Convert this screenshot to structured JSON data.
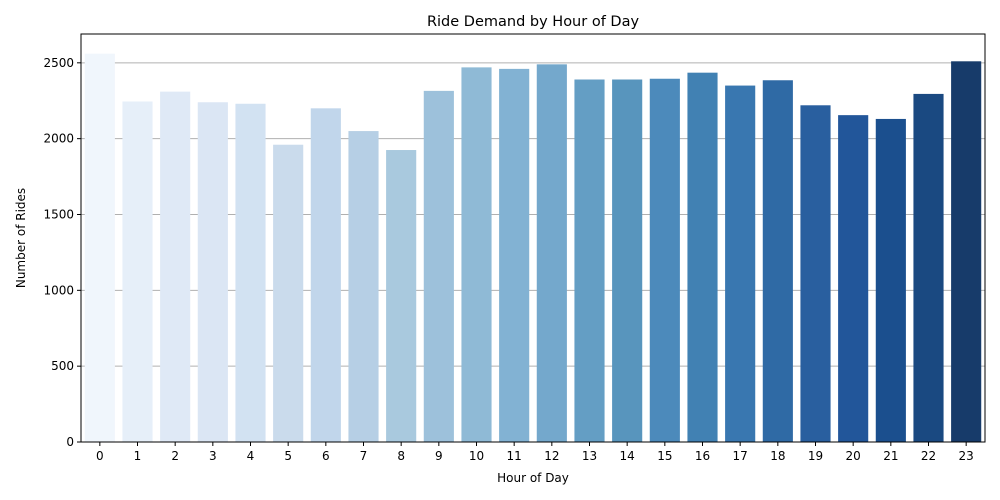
{
  "chart_data": {
    "type": "bar",
    "title": "Ride Demand by Hour of Day",
    "xlabel": "Hour of Day",
    "ylabel": "Number of Rides",
    "categories": [
      "0",
      "1",
      "2",
      "3",
      "4",
      "5",
      "6",
      "7",
      "8",
      "9",
      "10",
      "11",
      "12",
      "13",
      "14",
      "15",
      "16",
      "17",
      "18",
      "19",
      "20",
      "21",
      "22",
      "23"
    ],
    "values": [
      2560,
      2245,
      2310,
      2240,
      2230,
      1960,
      2200,
      2050,
      1925,
      2315,
      2470,
      2460,
      2490,
      2390,
      2390,
      2395,
      2435,
      2350,
      2385,
      2220,
      2155,
      2130,
      2295,
      2510
    ],
    "yticks": [
      0,
      500,
      1000,
      1500,
      2000,
      2500
    ],
    "ylim": [
      0,
      2690
    ],
    "grid": "y-major",
    "colors": [
      "#f0f6fc",
      "#e6eff9",
      "#dfe9f6",
      "#dbe6f4",
      "#d2e2f2",
      "#cadbec",
      "#c1d6eb",
      "#b6cfe5",
      "#a9c9de",
      "#9dc1db",
      "#8fbad6",
      "#82b2d3",
      "#74a8cc",
      "#649ec4",
      "#5895bd",
      "#4c8abb",
      "#4181b3",
      "#3977b0",
      "#2f6aa5",
      "#295f9f",
      "#22569a",
      "#1b4f8e",
      "#1a4981",
      "#173b6a"
    ]
  }
}
